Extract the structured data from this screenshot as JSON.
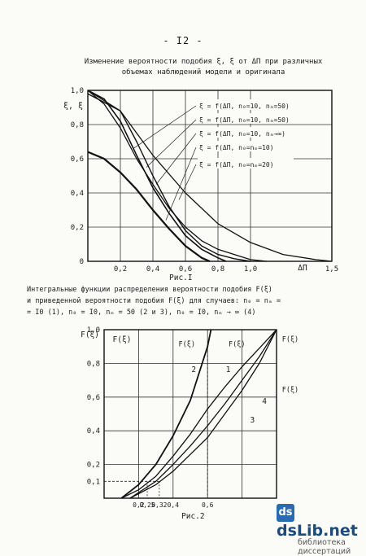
{
  "page_number": "- I2 -",
  "figure1": {
    "caption_line1": "Изменение вероятности подобия ξ, ξ от ΔΠ при различных",
    "caption_line2": "объемах наблюдений модели и оригинала",
    "label": "Рис.I"
  },
  "figure2": {
    "caption_line1": "Интегральные функции распределения вероятности подобия F(ξ)",
    "caption_line2": "и приведенной вероятности подобия F(ξ) для случаев: n₀ = nₘ =",
    "caption_line3": "= I0 (1), n₀ = I0, nₘ = 50 (2 и 3), n₀ = I0, nₘ → ∞ (4)",
    "label": "Рис.2"
  },
  "watermark": {
    "brand": "dsLib.net",
    "badge": "ds",
    "subtitle": "библиотека диссертаций"
  },
  "colors": {
    "ink": "#1c1c1c",
    "paper": "#fbfbf8",
    "brand": "#1e4b78"
  },
  "chart_data": [
    {
      "type": "line",
      "ylabel": "ξ, ξ",
      "xlabel": "ΔΠ",
      "xlim": [
        0,
        1.5
      ],
      "ylim": [
        0,
        1.0
      ],
      "grid": true,
      "x_ticks": [
        0.2,
        0.4,
        0.6,
        0.8,
        1.0
      ],
      "x_tick_labels": [
        "0,2",
        "0,4",
        "0,6",
        "0,8",
        "1,0"
      ],
      "x_end_label": "1,5",
      "y_ticks": [
        0,
        0.2,
        0.4,
        0.6,
        0.8,
        1.0
      ],
      "y_tick_labels": [
        "0",
        "0,2",
        "0,4",
        "0,6",
        "0,8",
        "1,0"
      ],
      "series": [
        {
          "name": "ξ = f(ΔΠ, n₀=10, nₘ=50)",
          "x": [
            0,
            0.1,
            0.2,
            0.3,
            0.4,
            0.5,
            0.6,
            0.7,
            0.8,
            0.85
          ],
          "y": [
            1.0,
            0.95,
            0.82,
            0.62,
            0.43,
            0.28,
            0.15,
            0.07,
            0.02,
            0.0
          ]
        },
        {
          "name": "ξ = f(ΔΠ, n₀=10, nₘ=50)",
          "x": [
            0,
            0.1,
            0.2,
            0.3,
            0.4,
            0.5,
            0.6,
            0.7,
            0.8,
            0.9,
            1.0,
            1.1
          ],
          "y": [
            1.0,
            0.92,
            0.78,
            0.6,
            0.45,
            0.31,
            0.2,
            0.12,
            0.07,
            0.04,
            0.01,
            0.0
          ]
        },
        {
          "name": "ξ = f(ΔΠ, n₀=10, nₘ→∞)",
          "x": [
            0,
            0.2,
            0.3,
            0.4,
            0.5,
            0.6,
            0.7,
            0.8,
            0.9,
            1.0
          ],
          "y": [
            0.98,
            0.88,
            0.7,
            0.5,
            0.32,
            0.18,
            0.09,
            0.04,
            0.015,
            0.0
          ]
        },
        {
          "name": "ξ = f(ΔΠ, n₀=nₘ=10)",
          "x": [
            0,
            0.1,
            0.2,
            0.3,
            0.4,
            0.5,
            0.6,
            0.7,
            0.75
          ],
          "y": [
            0.64,
            0.6,
            0.52,
            0.42,
            0.3,
            0.19,
            0.09,
            0.02,
            0.0
          ]
        },
        {
          "name": "ξ = f(ΔΠ, n₀=nₘ=20)",
          "x": [
            0,
            0.2,
            0.4,
            0.6,
            0.8,
            1.0,
            1.2,
            1.4,
            1.5
          ],
          "y": [
            1.0,
            0.88,
            0.62,
            0.4,
            0.22,
            0.11,
            0.04,
            0.01,
            0.0
          ]
        }
      ]
    },
    {
      "type": "line",
      "ylabel_left": "F(ξ)",
      "ylabel_right": "F(ξ)",
      "xlim": [
        0,
        1.0
      ],
      "ylim": [
        0,
        1.0
      ],
      "grid": true,
      "x_ticks": [
        0.2,
        0.25,
        0.32,
        0.4,
        0.6
      ],
      "x_tick_labels": [
        "0,2",
        "0,25",
        "0,32",
        "0,4",
        "0,6"
      ],
      "y_ticks": [
        0.1,
        0.2,
        0.4,
        0.6,
        0.8,
        1.0
      ],
      "y_tick_labels": [
        "0,1",
        "0,2",
        "0,4",
        "0,6",
        "0,8",
        "1,0"
      ],
      "annotations": [
        "F(ξ)",
        "F(ξ)",
        "F(ξ)",
        "F(ξ)"
      ],
      "series": [
        {
          "name": "1",
          "x": [
            0.1,
            0.2,
            0.3,
            0.4,
            0.5,
            0.6,
            0.7,
            0.8,
            0.9,
            1.0
          ],
          "y": [
            0.0,
            0.05,
            0.13,
            0.25,
            0.38,
            0.53,
            0.66,
            0.78,
            0.89,
            1.0
          ]
        },
        {
          "name": "2",
          "x": [
            0.1,
            0.2,
            0.3,
            0.4,
            0.5,
            0.6,
            0.62
          ],
          "y": [
            0.0,
            0.08,
            0.2,
            0.37,
            0.58,
            0.9,
            1.0
          ]
        },
        {
          "name": "3",
          "x": [
            0.15,
            0.3,
            0.4,
            0.5,
            0.6,
            0.7,
            0.8,
            0.9,
            1.0
          ],
          "y": [
            0.0,
            0.08,
            0.16,
            0.26,
            0.36,
            0.5,
            0.64,
            0.8,
            1.0
          ]
        },
        {
          "name": "4",
          "x": [
            0.15,
            0.3,
            0.4,
            0.5,
            0.6,
            0.7,
            0.8,
            0.9,
            1.0
          ],
          "y": [
            0.0,
            0.1,
            0.2,
            0.31,
            0.43,
            0.56,
            0.7,
            0.84,
            1.0
          ]
        }
      ]
    }
  ]
}
